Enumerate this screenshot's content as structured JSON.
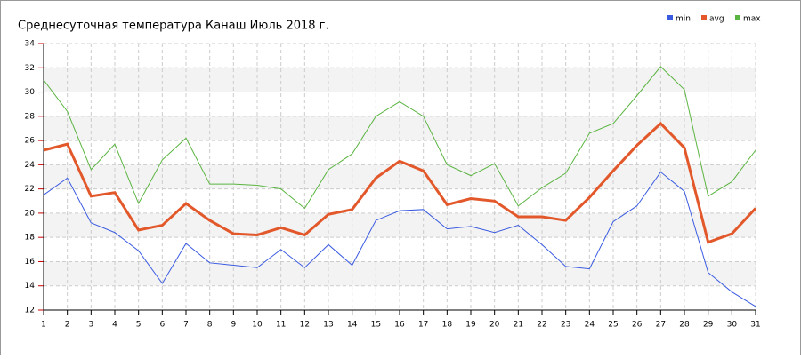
{
  "chart_data": {
    "type": "line",
    "title": "Среднесуточная температура Канаш  Июль 2018 г.",
    "x": [
      1,
      2,
      3,
      4,
      5,
      6,
      7,
      8,
      9,
      10,
      11,
      12,
      13,
      14,
      15,
      16,
      17,
      18,
      19,
      20,
      21,
      22,
      23,
      24,
      25,
      26,
      27,
      28,
      29,
      30,
      31
    ],
    "xlim": [
      1,
      31
    ],
    "xticks": [
      1,
      2,
      3,
      4,
      5,
      6,
      7,
      8,
      9,
      10,
      11,
      12,
      13,
      14,
      15,
      16,
      17,
      18,
      19,
      20,
      21,
      22,
      23,
      24,
      25,
      26,
      27,
      28,
      29,
      30,
      31
    ],
    "ylim": [
      12,
      34
    ],
    "yticks": [
      12,
      14,
      16,
      18,
      20,
      22,
      24,
      26,
      28,
      30,
      32,
      34
    ],
    "grid": true,
    "legend": "top-right",
    "series": [
      {
        "name": "min",
        "color": "#3a5be0",
        "values": [
          21.5,
          22.9,
          19.2,
          18.4,
          16.9,
          14.2,
          17.5,
          15.9,
          15.7,
          15.5,
          17.0,
          15.5,
          17.4,
          15.7,
          19.4,
          20.2,
          20.3,
          18.7,
          18.9,
          18.4,
          19.0,
          17.4,
          15.6,
          15.4,
          19.3,
          20.6,
          23.4,
          21.8,
          15.1,
          13.5,
          12.3
        ]
      },
      {
        "name": "avg",
        "color": "#e2582a",
        "values": [
          25.2,
          25.7,
          21.4,
          21.7,
          18.6,
          19.0,
          20.8,
          19.4,
          18.3,
          18.2,
          18.8,
          18.2,
          19.9,
          20.3,
          22.9,
          24.3,
          23.5,
          20.7,
          21.2,
          21.0,
          19.7,
          19.7,
          19.4,
          21.3,
          23.5,
          25.6,
          27.4,
          25.4,
          17.6,
          18.3,
          20.4
        ]
      },
      {
        "name": "max",
        "color": "#5ab440",
        "values": [
          31.0,
          28.4,
          23.6,
          25.7,
          20.8,
          24.4,
          26.2,
          22.4,
          22.4,
          22.3,
          22.0,
          20.4,
          23.6,
          24.9,
          28.0,
          29.2,
          28.0,
          24.0,
          23.1,
          24.1,
          20.6,
          22.1,
          23.3,
          26.6,
          27.4,
          29.7,
          32.1,
          30.2,
          21.4,
          22.6,
          25.2
        ]
      }
    ]
  }
}
